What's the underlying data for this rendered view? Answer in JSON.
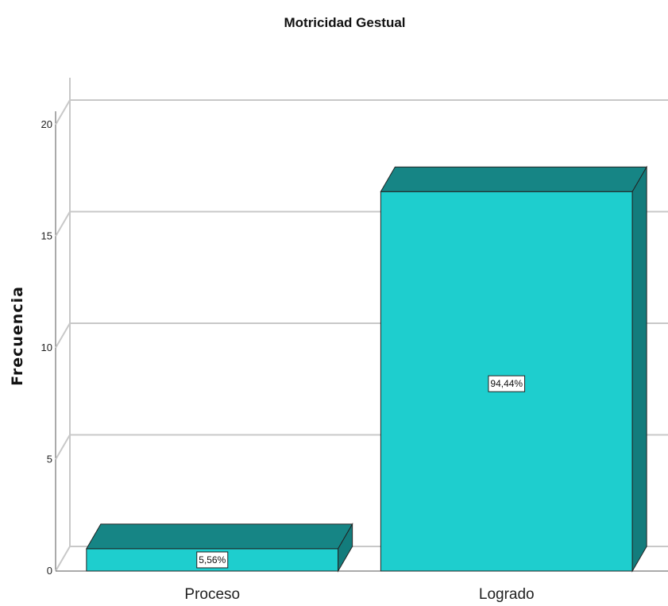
{
  "chart_data": {
    "type": "bar",
    "title": "Motricidad Gestual",
    "xlabel": "",
    "ylabel": "Frecuencia",
    "categories": [
      "Proceso",
      "Logrado"
    ],
    "values": [
      1,
      17
    ],
    "data_labels": [
      "5,56%",
      "94,44%"
    ],
    "yticks": [
      "0",
      "5",
      "10",
      "15",
      "20"
    ],
    "ylim": [
      0,
      21
    ],
    "grid": true,
    "style": "3d",
    "colors": {
      "front": "#1ecece",
      "top": "#168585",
      "side": "#137c7c"
    }
  }
}
